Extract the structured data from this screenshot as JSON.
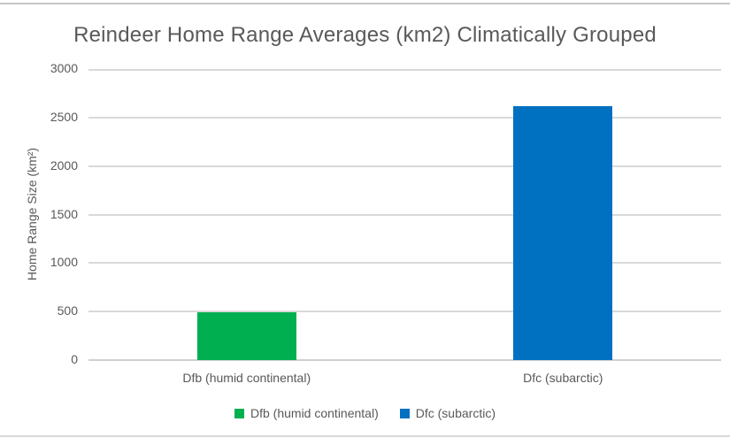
{
  "frame": {
    "background": "#ffffff",
    "top_border_color": "#c6c6c6",
    "bottom_border_color": "#d9d9d9"
  },
  "chart_data": {
    "type": "bar",
    "title": "Reindeer Home Range Averages (km2) Climatically Grouped",
    "categories": [
      "Dfb (humid continental)",
      "Dfc (subarctic)"
    ],
    "values": [
      490,
      2620
    ],
    "bar_colors": [
      "#00b050",
      "#0070c0"
    ],
    "xlabel": "",
    "ylabel": "Home Range Size (km²)",
    "ylim": [
      0,
      3000
    ],
    "ytick_step": 500,
    "ytick_labels": [
      "0",
      "500",
      "1000",
      "1500",
      "2000",
      "2500",
      "3000"
    ],
    "grid": true,
    "gridline_color": "#d9d9d9",
    "axis_line_color": "#d0d0d0",
    "text_color": "#595959",
    "legend": {
      "position": "bottom",
      "entries": [
        {
          "label": "Dfb (humid continental)",
          "color": "#00b050"
        },
        {
          "label": "Dfc (subarctic)",
          "color": "#0070c0"
        }
      ]
    }
  }
}
